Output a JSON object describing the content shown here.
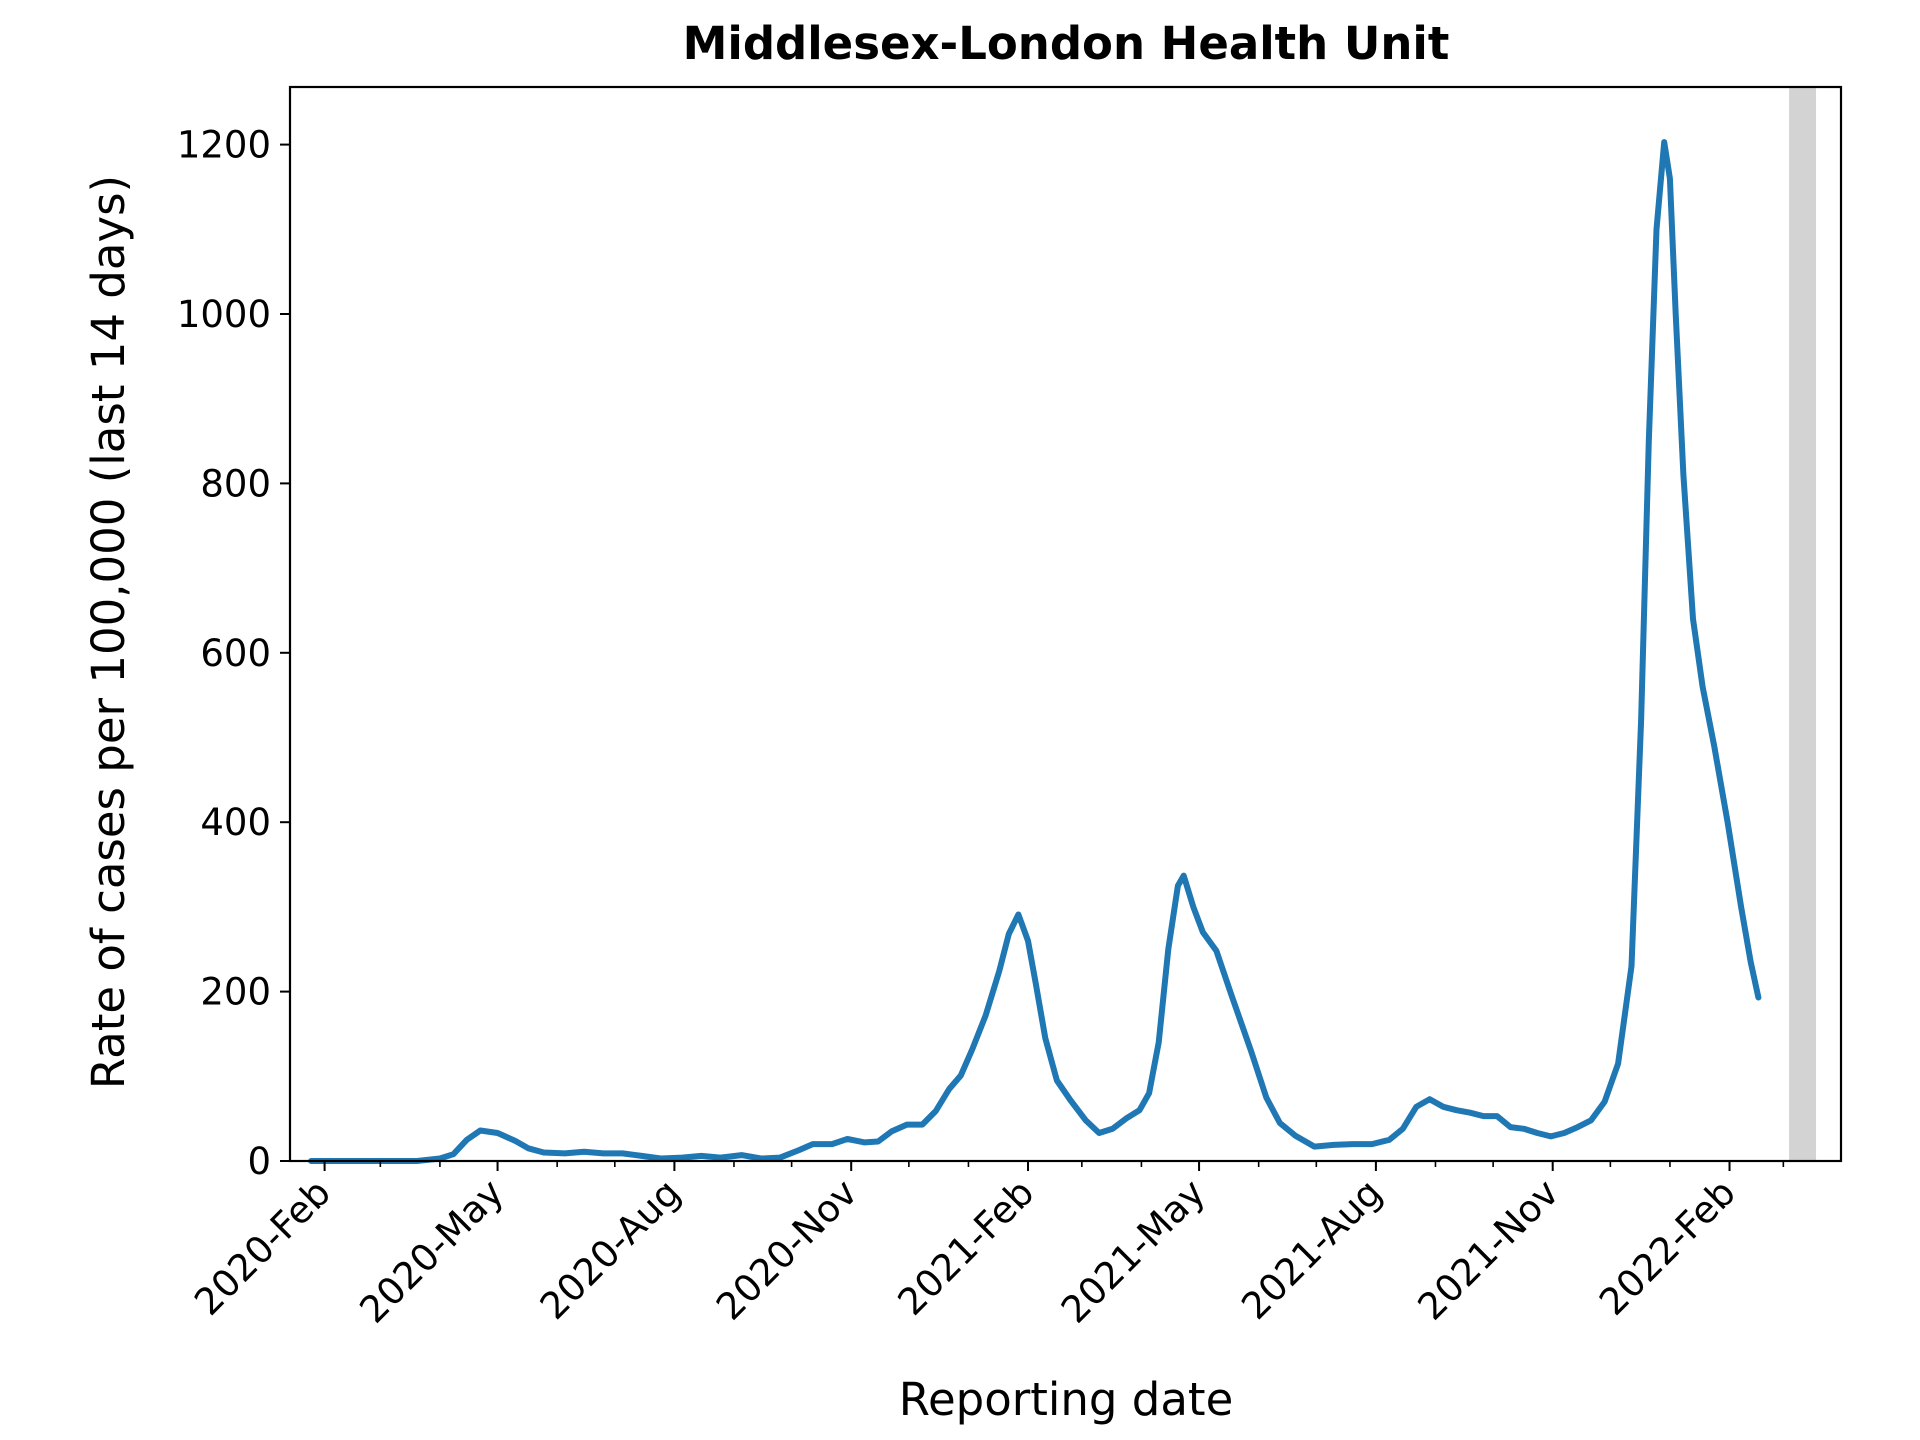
{
  "chart_data": {
    "type": "line",
    "title": "Middlesex-London Health Unit",
    "xlabel": "Reporting date",
    "ylabel": "Rate of cases per 100,000 (last 14 days)",
    "xlim": [
      "2020-01-14",
      "2022-03-31"
    ],
    "ylim": [
      0,
      1268
    ],
    "x_ticks": [
      {
        "date": "2020-02-01",
        "label": "2020-Feb"
      },
      {
        "date": "2020-05-01",
        "label": "2020-May"
      },
      {
        "date": "2020-08-01",
        "label": "2020-Aug"
      },
      {
        "date": "2020-11-01",
        "label": "2020-Nov"
      },
      {
        "date": "2021-02-01",
        "label": "2021-Feb"
      },
      {
        "date": "2021-05-01",
        "label": "2021-May"
      },
      {
        "date": "2021-08-01",
        "label": "2021-Aug"
      },
      {
        "date": "2021-11-01",
        "label": "2021-Nov"
      },
      {
        "date": "2022-02-01",
        "label": "2022-Feb"
      }
    ],
    "y_ticks": [
      {
        "value": 0,
        "label": "0"
      },
      {
        "value": 200,
        "label": "200"
      },
      {
        "value": 400,
        "label": "400"
      },
      {
        "value": 600,
        "label": "600"
      },
      {
        "value": 800,
        "label": "800"
      },
      {
        "value": 1000,
        "label": "1000"
      },
      {
        "value": 1200,
        "label": "1200"
      }
    ],
    "grid": false,
    "shaded_region": {
      "start": "2022-03-04",
      "end": "2022-03-18",
      "color": "#d3d3d3"
    },
    "series": [
      {
        "color": "#1f77b4",
        "points": [
          [
            "2020-01-25",
            0
          ],
          [
            "2020-02-15",
            0
          ],
          [
            "2020-03-20",
            0
          ],
          [
            "2020-04-01",
            3
          ],
          [
            "2020-04-08",
            8
          ],
          [
            "2020-04-15",
            25
          ],
          [
            "2020-04-22",
            36
          ],
          [
            "2020-05-01",
            33
          ],
          [
            "2020-05-10",
            24
          ],
          [
            "2020-05-17",
            15
          ],
          [
            "2020-05-25",
            10
          ],
          [
            "2020-06-05",
            9
          ],
          [
            "2020-06-15",
            11
          ],
          [
            "2020-06-25",
            9
          ],
          [
            "2020-07-05",
            9
          ],
          [
            "2020-07-15",
            6
          ],
          [
            "2020-07-25",
            3
          ],
          [
            "2020-08-05",
            4
          ],
          [
            "2020-08-15",
            6
          ],
          [
            "2020-08-25",
            4
          ],
          [
            "2020-09-05",
            7
          ],
          [
            "2020-09-15",
            3
          ],
          [
            "2020-09-25",
            4
          ],
          [
            "2020-10-05",
            13
          ],
          [
            "2020-10-12",
            20
          ],
          [
            "2020-10-22",
            20
          ],
          [
            "2020-10-30",
            26
          ],
          [
            "2020-11-08",
            22
          ],
          [
            "2020-11-15",
            23
          ],
          [
            "2020-11-22",
            35
          ],
          [
            "2020-11-30",
            43
          ],
          [
            "2020-12-08",
            43
          ],
          [
            "2020-12-15",
            59
          ],
          [
            "2020-12-22",
            85
          ],
          [
            "2020-12-28",
            101
          ],
          [
            "2021-01-03",
            132
          ],
          [
            "2021-01-10",
            172
          ],
          [
            "2021-01-17",
            224
          ],
          [
            "2021-01-22",
            268
          ],
          [
            "2021-01-27",
            291
          ],
          [
            "2021-02-01",
            260
          ],
          [
            "2021-02-05",
            210
          ],
          [
            "2021-02-10",
            145
          ],
          [
            "2021-02-16",
            95
          ],
          [
            "2021-02-23",
            72
          ],
          [
            "2021-03-03",
            48
          ],
          [
            "2021-03-10",
            33
          ],
          [
            "2021-03-17",
            38
          ],
          [
            "2021-03-24",
            50
          ],
          [
            "2021-03-31",
            60
          ],
          [
            "2021-04-05",
            80
          ],
          [
            "2021-04-10",
            140
          ],
          [
            "2021-04-15",
            250
          ],
          [
            "2021-04-20",
            325
          ],
          [
            "2021-04-23",
            337
          ],
          [
            "2021-04-28",
            300
          ],
          [
            "2021-05-03",
            270
          ],
          [
            "2021-05-10",
            248
          ],
          [
            "2021-05-18",
            195
          ],
          [
            "2021-05-28",
            130
          ],
          [
            "2021-06-05",
            75
          ],
          [
            "2021-06-12",
            45
          ],
          [
            "2021-06-20",
            30
          ],
          [
            "2021-06-30",
            17
          ],
          [
            "2021-07-10",
            19
          ],
          [
            "2021-07-20",
            20
          ],
          [
            "2021-07-30",
            20
          ],
          [
            "2021-08-08",
            25
          ],
          [
            "2021-08-15",
            38
          ],
          [
            "2021-08-22",
            64
          ],
          [
            "2021-08-29",
            73
          ],
          [
            "2021-09-05",
            64
          ],
          [
            "2021-09-12",
            60
          ],
          [
            "2021-09-19",
            57
          ],
          [
            "2021-09-26",
            53
          ],
          [
            "2021-10-03",
            53
          ],
          [
            "2021-10-10",
            40
          ],
          [
            "2021-10-17",
            38
          ],
          [
            "2021-10-24",
            33
          ],
          [
            "2021-10-31",
            29
          ],
          [
            "2021-11-07",
            33
          ],
          [
            "2021-11-14",
            40
          ],
          [
            "2021-11-21",
            48
          ],
          [
            "2021-11-28",
            70
          ],
          [
            "2021-12-05",
            115
          ],
          [
            "2021-12-12",
            230
          ],
          [
            "2021-12-17",
            520
          ],
          [
            "2021-12-21",
            850
          ],
          [
            "2021-12-25",
            1100
          ],
          [
            "2021-12-29",
            1203
          ],
          [
            "2022-01-01",
            1160
          ],
          [
            "2022-01-04",
            1000
          ],
          [
            "2022-01-08",
            810
          ],
          [
            "2022-01-13",
            640
          ],
          [
            "2022-01-18",
            560
          ],
          [
            "2022-01-24",
            490
          ],
          [
            "2022-01-31",
            400
          ],
          [
            "2022-02-07",
            300
          ],
          [
            "2022-02-12",
            235
          ],
          [
            "2022-02-16",
            193
          ]
        ]
      }
    ]
  }
}
